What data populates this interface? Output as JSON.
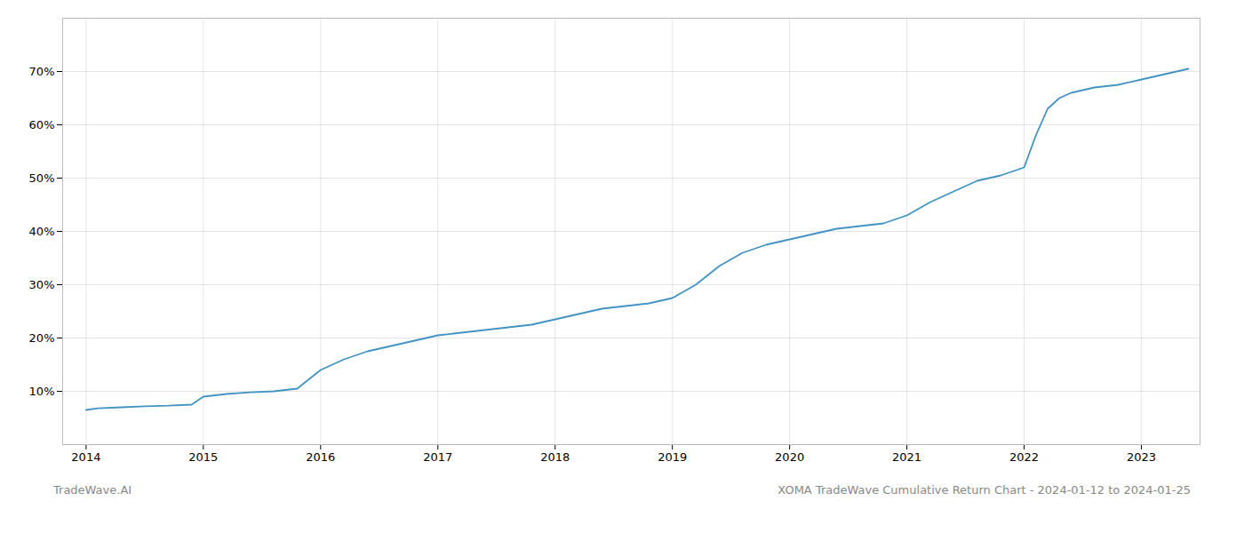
{
  "chart_data": {
    "type": "line",
    "x": [
      2014.0,
      2014.1,
      2014.3,
      2014.5,
      2014.7,
      2014.9,
      2015.0,
      2015.2,
      2015.4,
      2015.6,
      2015.8,
      2016.0,
      2016.2,
      2016.4,
      2016.6,
      2016.8,
      2017.0,
      2017.2,
      2017.4,
      2017.6,
      2017.8,
      2018.0,
      2018.2,
      2018.4,
      2018.6,
      2018.8,
      2019.0,
      2019.2,
      2019.4,
      2019.6,
      2019.8,
      2020.0,
      2020.2,
      2020.4,
      2020.6,
      2020.8,
      2021.0,
      2021.2,
      2021.4,
      2021.6,
      2021.8,
      2022.0,
      2022.1,
      2022.2,
      2022.3,
      2022.4,
      2022.6,
      2022.8,
      2023.0,
      2023.2,
      2023.4
    ],
    "values": [
      6.5,
      6.8,
      7.0,
      7.2,
      7.3,
      7.5,
      9.0,
      9.5,
      9.8,
      10.0,
      10.5,
      14.0,
      16.0,
      17.5,
      18.5,
      19.5,
      20.5,
      21.0,
      21.5,
      22.0,
      22.5,
      23.5,
      24.5,
      25.5,
      26.0,
      26.5,
      27.5,
      30.0,
      33.5,
      36.0,
      37.5,
      38.5,
      39.5,
      40.5,
      41.0,
      41.5,
      43.0,
      45.5,
      47.5,
      49.5,
      50.5,
      52.0,
      58.0,
      63.0,
      65.0,
      66.0,
      67.0,
      67.5,
      68.5,
      69.5,
      70.5
    ],
    "color": "#4393c3",
    "xlim": [
      2013.8,
      2023.5
    ],
    "ylim": [
      0,
      80
    ],
    "xticks": [
      2014,
      2015,
      2016,
      2017,
      2018,
      2019,
      2020,
      2021,
      2022,
      2023
    ],
    "yticks": [
      {
        "value": 10,
        "label": "10%"
      },
      {
        "value": 20,
        "label": "20%"
      },
      {
        "value": 30,
        "label": "30%"
      },
      {
        "value": 40,
        "label": "40%"
      },
      {
        "value": 50,
        "label": "50%"
      },
      {
        "value": 60,
        "label": "60%"
      },
      {
        "value": 70,
        "label": "70%"
      }
    ],
    "grid": true,
    "annotations": [
      "TradeWave.AI",
      "XOMA TradeWave Cumulative Return Chart - 2024-01-12 to 2024-01-25"
    ]
  }
}
